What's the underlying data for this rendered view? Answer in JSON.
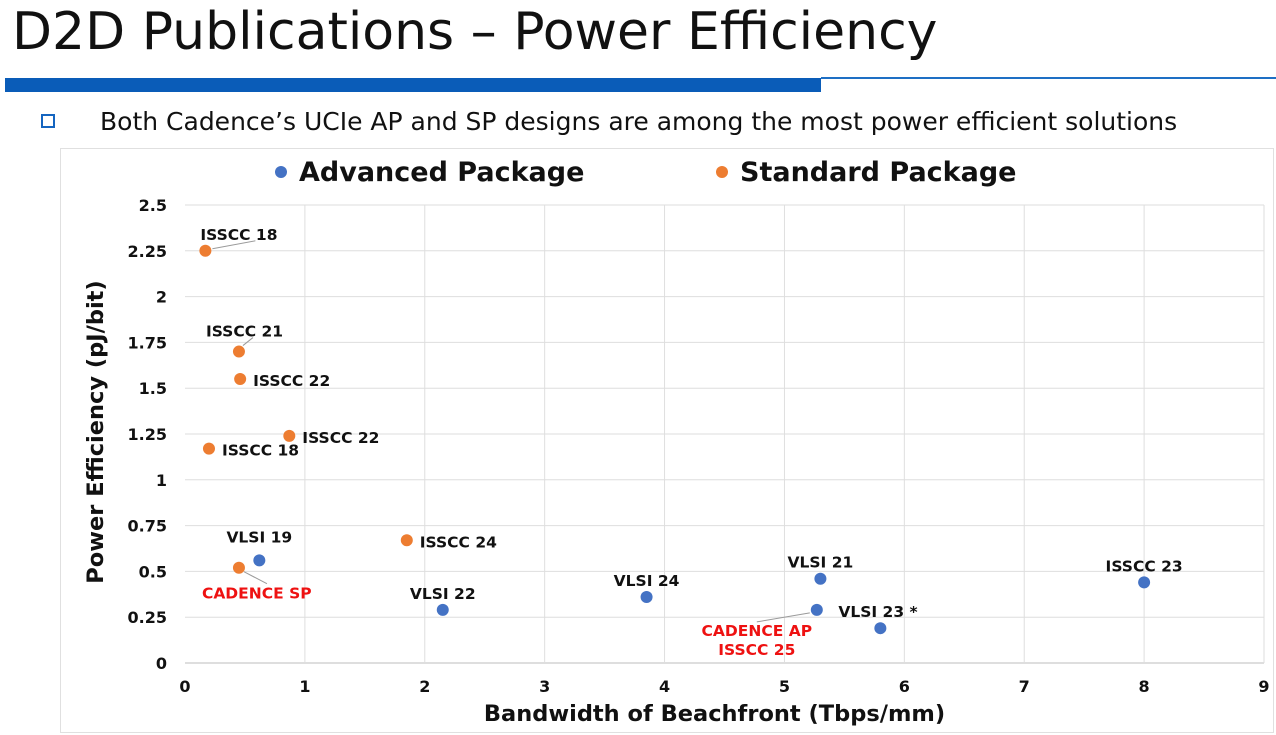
{
  "slide": {
    "title": "D2D Publications – Power Efficiency",
    "bullet": "Both Cadence’s UCIe AP and SP designs are among the most power efficient solutions"
  },
  "colors": {
    "advanced": "#4472c4",
    "standard": "#ed7d31",
    "highlight": "#ee1111",
    "accent_bar": "#0a5cb8"
  },
  "chart_data": {
    "type": "scatter",
    "xlabel": "Bandwidth of Beachfront (Tbps/mm)",
    "ylabel": "Power Efficiency (pJ/bit)",
    "xlim": [
      0,
      9
    ],
    "ylim": [
      0,
      2.5
    ],
    "xticks": [
      "0",
      "1",
      "2",
      "3",
      "4",
      "5",
      "6",
      "7",
      "8",
      "9"
    ],
    "yticks": [
      "0",
      "0.25",
      "0.5",
      "0.75",
      "1",
      "1.25",
      "1.5",
      "1.75",
      "2",
      "2.25",
      "2.5"
    ],
    "grid": true,
    "legend_position": "top",
    "series": [
      {
        "name": "Advanced Package",
        "points": [
          {
            "x": 0.62,
            "y": 0.56,
            "label": "VLSI 19"
          },
          {
            "x": 2.15,
            "y": 0.29,
            "label": "VLSI 22"
          },
          {
            "x": 3.85,
            "y": 0.36,
            "label": "VLSI 24"
          },
          {
            "x": 5.3,
            "y": 0.46,
            "label": "VLSI 21"
          },
          {
            "x": 5.27,
            "y": 0.29,
            "label": "CADENCE AP\nISSCC 25",
            "highlight": true
          },
          {
            "x": 5.8,
            "y": 0.19,
            "label": "VLSI 23 *"
          },
          {
            "x": 8.0,
            "y": 0.44,
            "label": "ISSCC 23"
          }
        ]
      },
      {
        "name": "Standard Package",
        "points": [
          {
            "x": 0.17,
            "y": 2.25,
            "label": "ISSCC 18"
          },
          {
            "x": 0.45,
            "y": 1.7,
            "label": "ISSCC 21"
          },
          {
            "x": 0.46,
            "y": 1.55,
            "label": "ISSCC 22"
          },
          {
            "x": 0.87,
            "y": 1.24,
            "label": "ISSCC 22"
          },
          {
            "x": 0.2,
            "y": 1.17,
            "label": "ISSCC 18"
          },
          {
            "x": 1.85,
            "y": 0.67,
            "label": "ISSCC 24"
          },
          {
            "x": 0.45,
            "y": 0.52,
            "label": "CADENCE SP",
            "highlight": true
          }
        ]
      }
    ]
  }
}
